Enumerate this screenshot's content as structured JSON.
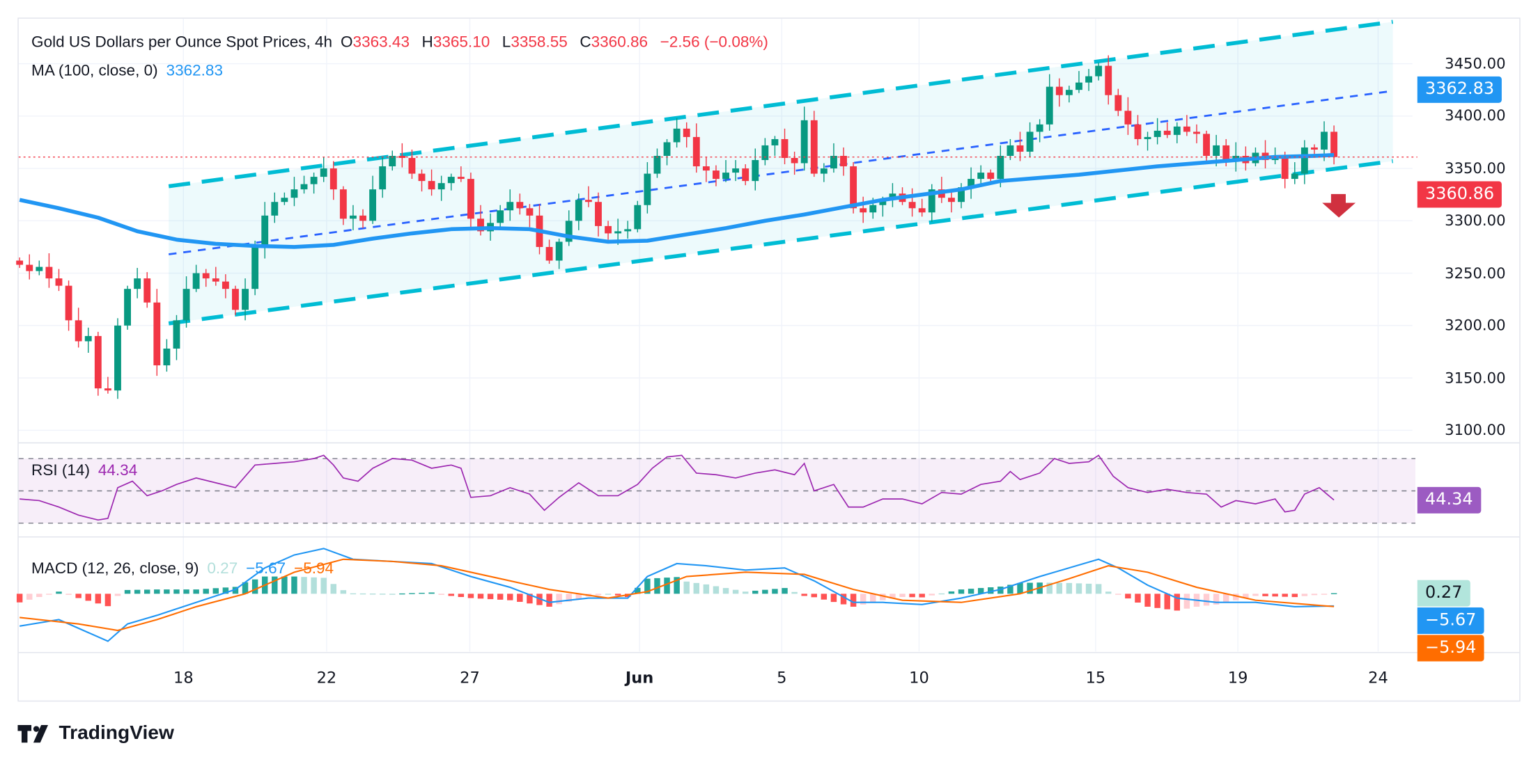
{
  "header": {
    "title": "Gold US Dollars per Ounce Spot Prices, 4h",
    "o_label": "O",
    "open": "3363.43",
    "h_label": "H",
    "high": "3365.10",
    "l_label": "L",
    "low": "3358.55",
    "c_label": "C",
    "close": "3360.86",
    "change": "−2.56 (−0.08%)"
  },
  "ma_legend": {
    "label": "MA (100, close, 0)",
    "value": "3362.83"
  },
  "rsi_legend": {
    "label": "RSI (14)",
    "value": "44.34"
  },
  "macd_legend": {
    "label": "MACD (12, 26, close, 9)",
    "hist": "0.27",
    "macd": "−5.67",
    "signal": "−5.94"
  },
  "tags": {
    "ma": "3362.83",
    "price": "3360.86",
    "rsi": "44.34",
    "hist": "0.27",
    "macd": "−5.67",
    "signal": "−5.94"
  },
  "logo": "TradingView",
  "colors": {
    "up": "#089981",
    "down": "#f23645",
    "ma": "#2196f3",
    "channel": "#00bcd4",
    "channel_mid": "#2962ff",
    "rsi": "#9c27b0",
    "macd": "#2196f3",
    "signal": "#ff6d00",
    "arrow": "#d0303f"
  },
  "chart_data": {
    "type": "candlestick",
    "title": "Gold US Dollars per Ounce Spot Prices, 4h",
    "y_ticks": [
      "3450.00",
      "3400.00",
      "3350.00",
      "3300.00",
      "3250.00",
      "3200.00",
      "3150.00",
      "3100.00"
    ],
    "ylim": [
      3100,
      3450
    ],
    "x_ticks": [
      "18",
      "22",
      "27",
      "Jun",
      "5",
      "10",
      "15",
      "19",
      "24"
    ],
    "closes": [
      3258,
      3252,
      3256,
      3245,
      3238,
      3205,
      3185,
      3190,
      3140,
      3138,
      3200,
      3235,
      3245,
      3222,
      3162,
      3178,
      3205,
      3235,
      3250,
      3245,
      3242,
      3235,
      3215,
      3235,
      3275,
      3305,
      3318,
      3322,
      3330,
      3335,
      3342,
      3350,
      3330,
      3302,
      3305,
      3300,
      3330,
      3352,
      3362,
      3360,
      3345,
      3338,
      3330,
      3336,
      3342,
      3340,
      3302,
      3290,
      3298,
      3310,
      3318,
      3312,
      3305,
      3275,
      3262,
      3280,
      3300,
      3320,
      3318,
      3295,
      3288,
      3290,
      3292,
      3315,
      3345,
      3362,
      3375,
      3388,
      3380,
      3352,
      3348,
      3340,
      3346,
      3350,
      3338,
      3358,
      3372,
      3378,
      3360,
      3355,
      3396,
      3345,
      3350,
      3362,
      3352,
      3312,
      3308,
      3315,
      3320,
      3326,
      3318,
      3312,
      3308,
      3330,
      3322,
      3318,
      3332,
      3340,
      3346,
      3340,
      3362,
      3372,
      3366,
      3385,
      3392,
      3428,
      3420,
      3425,
      3432,
      3438,
      3448,
      3420,
      3405,
      3392,
      3378,
      3380,
      3386,
      3382,
      3390,
      3385,
      3383,
      3362,
      3372,
      3358,
      3362,
      3355,
      3365,
      3358,
      3362,
      3340,
      3345,
      3370,
      3368,
      3385,
      3360.86
    ],
    "first_open": 3262,
    "ma100": [
      [
        0,
        3320
      ],
      [
        4,
        3312
      ],
      [
        8,
        3303
      ],
      [
        12,
        3290
      ],
      [
        16,
        3282
      ],
      [
        20,
        3278
      ],
      [
        24,
        3276
      ],
      [
        28,
        3275
      ],
      [
        32,
        3277
      ],
      [
        36,
        3283
      ],
      [
        40,
        3288
      ],
      [
        44,
        3292
      ],
      [
        48,
        3293
      ],
      [
        52,
        3292
      ],
      [
        56,
        3285
      ],
      [
        60,
        3280
      ],
      [
        64,
        3281
      ],
      [
        68,
        3287
      ],
      [
        72,
        3293
      ],
      [
        76,
        3300
      ],
      [
        80,
        3306
      ],
      [
        84,
        3313
      ],
      [
        88,
        3320
      ],
      [
        92,
        3325
      ],
      [
        96,
        3330
      ],
      [
        100,
        3338
      ],
      [
        104,
        3341
      ],
      [
        108,
        3344
      ],
      [
        112,
        3348
      ],
      [
        116,
        3352
      ],
      [
        120,
        3355
      ],
      [
        124,
        3358
      ],
      [
        128,
        3361
      ],
      [
        132,
        3362
      ],
      [
        134,
        3362.83
      ]
    ],
    "channel": {
      "upper": [
        [
          15.2,
          3333
        ],
        [
          140,
          3490
        ]
      ],
      "middle": [
        [
          15.2,
          3268
        ],
        [
          140,
          3424
        ]
      ],
      "lower": [
        [
          15.2,
          3202
        ],
        [
          140,
          3357
        ]
      ]
    },
    "rsi": {
      "levels": [
        70,
        50,
        30
      ],
      "points": [
        [
          0,
          45
        ],
        [
          2,
          44
        ],
        [
          4,
          40
        ],
        [
          6,
          35
        ],
        [
          8,
          32
        ],
        [
          9,
          33
        ],
        [
          10,
          52
        ],
        [
          11.5,
          56
        ],
        [
          13,
          47
        ],
        [
          14.5,
          50
        ],
        [
          16,
          54
        ],
        [
          18,
          58
        ],
        [
          20,
          55
        ],
        [
          22,
          52
        ],
        [
          24,
          66
        ],
        [
          26,
          67
        ],
        [
          28,
          68
        ],
        [
          30,
          70
        ],
        [
          31,
          72
        ],
        [
          32,
          66
        ],
        [
          33,
          58
        ],
        [
          34.5,
          56
        ],
        [
          36,
          64
        ],
        [
          38,
          70
        ],
        [
          40,
          69
        ],
        [
          42,
          64
        ],
        [
          44,
          66
        ],
        [
          45,
          64
        ],
        [
          46,
          46
        ],
        [
          48,
          47
        ],
        [
          50,
          52
        ],
        [
          52,
          48
        ],
        [
          53.5,
          38
        ],
        [
          55,
          46
        ],
        [
          57,
          55
        ],
        [
          59,
          47
        ],
        [
          61,
          47
        ],
        [
          63,
          54
        ],
        [
          64.5,
          64
        ],
        [
          66,
          71
        ],
        [
          67.5,
          72
        ],
        [
          69,
          61
        ],
        [
          71,
          60
        ],
        [
          73,
          58
        ],
        [
          75,
          61
        ],
        [
          77,
          63
        ],
        [
          79,
          60
        ],
        [
          80,
          67
        ],
        [
          81,
          50
        ],
        [
          83,
          54
        ],
        [
          84.5,
          40
        ],
        [
          86,
          40
        ],
        [
          88,
          45
        ],
        [
          90,
          45
        ],
        [
          92,
          42
        ],
        [
          94,
          49
        ],
        [
          96,
          48
        ],
        [
          98,
          54
        ],
        [
          100,
          56
        ],
        [
          101,
          62
        ],
        [
          102,
          57
        ],
        [
          104,
          61
        ],
        [
          105.5,
          70
        ],
        [
          107,
          67
        ],
        [
          109,
          68
        ],
        [
          110,
          72
        ],
        [
          111.5,
          59
        ],
        [
          113,
          52
        ],
        [
          115,
          49
        ],
        [
          117,
          51
        ],
        [
          119,
          49
        ],
        [
          121,
          48
        ],
        [
          122.5,
          40
        ],
        [
          124,
          44
        ],
        [
          126,
          42
        ],
        [
          128,
          45
        ],
        [
          129,
          37
        ],
        [
          130,
          38
        ],
        [
          131,
          48
        ],
        [
          132.5,
          52
        ],
        [
          134,
          44.34
        ]
      ]
    },
    "macd": {
      "macd": [
        [
          0,
          -15
        ],
        [
          4,
          -12
        ],
        [
          7,
          -18
        ],
        [
          9,
          -22
        ],
        [
          11,
          -14
        ],
        [
          14,
          -10
        ],
        [
          18,
          -4
        ],
        [
          22,
          2
        ],
        [
          25,
          12
        ],
        [
          28,
          18
        ],
        [
          31,
          21
        ],
        [
          34,
          16
        ],
        [
          38,
          15
        ],
        [
          42,
          14
        ],
        [
          46,
          8
        ],
        [
          50,
          3
        ],
        [
          54,
          -4
        ],
        [
          58,
          -2
        ],
        [
          62,
          -2
        ],
        [
          64,
          8
        ],
        [
          67,
          14
        ],
        [
          70,
          13
        ],
        [
          74,
          11
        ],
        [
          78,
          12
        ],
        [
          81,
          6
        ],
        [
          85,
          -4
        ],
        [
          88,
          -4
        ],
        [
          92,
          -5
        ],
        [
          96,
          -2
        ],
        [
          100,
          2
        ],
        [
          104,
          8
        ],
        [
          107,
          12
        ],
        [
          110,
          16
        ],
        [
          112,
          12
        ],
        [
          115,
          4
        ],
        [
          118,
          -2
        ],
        [
          122,
          -4
        ],
        [
          126,
          -4
        ],
        [
          130,
          -6
        ],
        [
          134,
          -5.67
        ]
      ],
      "signal": [
        [
          0,
          -11
        ],
        [
          6,
          -14
        ],
        [
          10,
          -17
        ],
        [
          14,
          -12
        ],
        [
          18,
          -6
        ],
        [
          23,
          0
        ],
        [
          28,
          10
        ],
        [
          33,
          16
        ],
        [
          38,
          15
        ],
        [
          43,
          13
        ],
        [
          48,
          8
        ],
        [
          54,
          2
        ],
        [
          60,
          -2
        ],
        [
          64,
          1
        ],
        [
          68,
          8
        ],
        [
          74,
          10
        ],
        [
          80,
          9
        ],
        [
          85,
          2
        ],
        [
          90,
          -3
        ],
        [
          96,
          -4
        ],
        [
          102,
          0
        ],
        [
          107,
          7
        ],
        [
          111,
          13
        ],
        [
          115,
          10
        ],
        [
          120,
          3
        ],
        [
          126,
          -3
        ],
        [
          134,
          -5.94
        ]
      ]
    }
  }
}
